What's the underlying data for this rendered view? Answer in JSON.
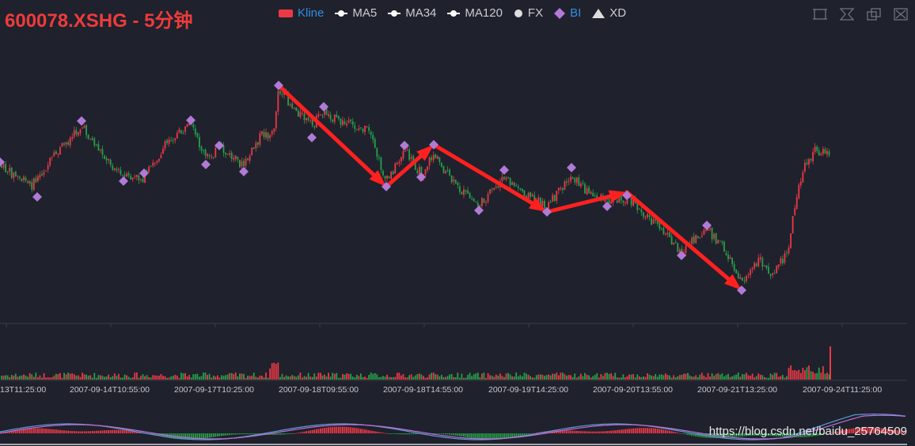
{
  "title": "600078.XSHG - 5分钟",
  "legend": [
    {
      "name": "Kline",
      "color": "#ec3945",
      "shape": "rect",
      "label_color": "#2f8fe0"
    },
    {
      "name": "MA5",
      "color": "#ffffff",
      "shape": "line-dot",
      "label_color": "#cccccc"
    },
    {
      "name": "MA34",
      "color": "#ffffff",
      "shape": "line-dot",
      "label_color": "#cccccc"
    },
    {
      "name": "MA120",
      "color": "#ffffff",
      "shape": "line-dot",
      "label_color": "#cccccc"
    },
    {
      "name": "FX",
      "color": "#dddddd",
      "shape": "circle",
      "label_color": "#cccccc"
    },
    {
      "name": "BI",
      "color": "#b07ad6",
      "shape": "diamond",
      "label_color": "#2f8fe0"
    },
    {
      "name": "XD",
      "color": "#dddddd",
      "shape": "triangle",
      "label_color": "#cccccc"
    }
  ],
  "toolbox": [
    {
      "name": "zoom-icon"
    },
    {
      "name": "zoom-reset-icon"
    },
    {
      "name": "restore-icon"
    },
    {
      "name": "save-image-icon"
    }
  ],
  "watermark": "https://blog.csdn.net/baidu_25764509",
  "colors": {
    "up": "#ec3945",
    "down": "#27a048",
    "bi": "#b07ad6",
    "xd": "#ff2020",
    "macd_dif": "#5b9bd5",
    "macd_dea": "#c06fd6",
    "grid": "#3a3c48"
  },
  "chart_data": {
    "type": "candlestick",
    "x_tick_labels": [
      "13T11:25:00",
      "2007-09-14T10:55:00",
      "2007-09-17T10:25:00",
      "2007-09-18T09:55:00",
      "2007-09-18T14:55:00",
      "2007-09-19T14:25:00",
      "2007-09-20T13:55:00",
      "2007-09-21T13:25:00",
      "2007-09-24T11:25:00"
    ],
    "bi_points": [
      [
        0,
        205
      ],
      [
        47,
        249
      ],
      [
        103,
        153
      ],
      [
        156,
        229
      ],
      [
        182,
        219
      ],
      [
        241,
        152
      ],
      [
        260,
        208
      ],
      [
        277,
        184
      ],
      [
        308,
        217
      ],
      [
        352,
        108
      ],
      [
        394,
        174
      ],
      [
        409,
        135
      ],
      [
        488,
        236
      ],
      [
        511,
        184
      ],
      [
        532,
        224
      ],
      [
        548,
        183
      ],
      [
        605,
        266
      ],
      [
        637,
        215
      ],
      [
        691,
        268
      ],
      [
        722,
        212
      ],
      [
        767,
        261
      ],
      [
        792,
        247
      ],
      [
        861,
        323
      ],
      [
        893,
        285
      ],
      [
        937,
        367
      ]
    ],
    "xd_arrows": [
      [
        [
          352,
          108
        ],
        [
          488,
          236
        ]
      ],
      [
        [
          488,
          236
        ],
        [
          548,
          183
        ]
      ],
      [
        [
          548,
          183
        ],
        [
          691,
          268
        ]
      ],
      [
        [
          691,
          268
        ],
        [
          792,
          243
        ]
      ],
      [
        [
          792,
          243
        ],
        [
          937,
          367
        ]
      ]
    ],
    "price_path": [
      [
        0,
        210
      ],
      [
        40,
        235
      ],
      [
        75,
        190
      ],
      [
        103,
        160
      ],
      [
        130,
        195
      ],
      [
        156,
        225
      ],
      [
        182,
        225
      ],
      [
        215,
        175
      ],
      [
        241,
        160
      ],
      [
        260,
        200
      ],
      [
        277,
        188
      ],
      [
        308,
        210
      ],
      [
        330,
        170
      ],
      [
        345,
        170
      ],
      [
        352,
        115
      ],
      [
        394,
        160
      ],
      [
        409,
        140
      ],
      [
        430,
        155
      ],
      [
        465,
        165
      ],
      [
        488,
        230
      ],
      [
        511,
        190
      ],
      [
        532,
        220
      ],
      [
        548,
        195
      ],
      [
        575,
        235
      ],
      [
        605,
        260
      ],
      [
        637,
        225
      ],
      [
        665,
        245
      ],
      [
        691,
        262
      ],
      [
        722,
        222
      ],
      [
        745,
        245
      ],
      [
        767,
        255
      ],
      [
        792,
        250
      ],
      [
        830,
        285
      ],
      [
        861,
        318
      ],
      [
        893,
        290
      ],
      [
        912,
        310
      ],
      [
        937,
        355
      ],
      [
        960,
        330
      ],
      [
        975,
        345
      ],
      [
        995,
        320
      ],
      [
        1005,
        255
      ],
      [
        1015,
        215
      ],
      [
        1030,
        190
      ],
      [
        1050,
        195
      ]
    ]
  }
}
